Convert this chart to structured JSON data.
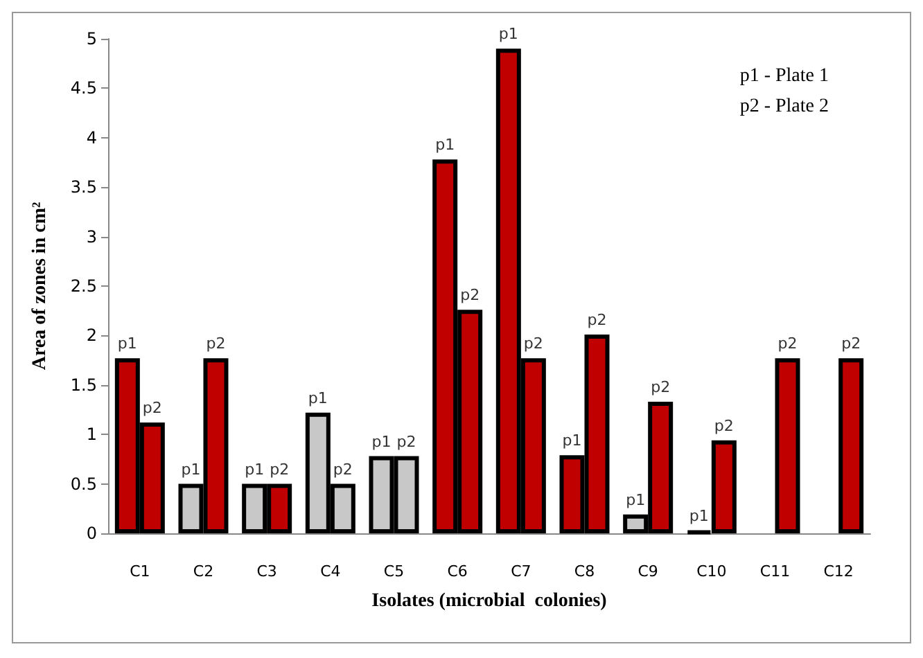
{
  "chart_data": {
    "type": "bar",
    "xlabel": "Isolates (microbial  colonies)",
    "ylabel": "Area of zones in cm²",
    "categories": [
      "C1",
      "C2",
      "C3",
      "C4",
      "C5",
      "C6",
      "C7",
      "C8",
      "C9",
      "C10",
      "C11",
      "C12"
    ],
    "series": [
      {
        "colors": [
          "#c00000",
          "#c8c8c8",
          "#c8c8c8",
          "#c8c8c8",
          "#c8c8c8",
          "#c00000",
          "#c00000",
          "#c00000",
          "#c8c8c8",
          "#000000",
          null,
          null
        ],
        "values": [
          1.77,
          0.5,
          0.5,
          1.22,
          0.78,
          3.78,
          4.9,
          0.79,
          0.19,
          0.02,
          null,
          null
        ],
        "value_labels": [
          "p1",
          "p1",
          "p1",
          "p1",
          "p1",
          "p1",
          "p1",
          "p1",
          "p1",
          "p1",
          null,
          null
        ]
      },
      {
        "colors": [
          "#c00000",
          "#c00000",
          "#c00000",
          "#c8c8c8",
          "#c8c8c8",
          "#c00000",
          "#c00000",
          "#c00000",
          "#c00000",
          "#c00000",
          "#c00000",
          "#c00000"
        ],
        "values": [
          1.12,
          1.77,
          0.5,
          0.5,
          0.78,
          2.26,
          1.77,
          2.01,
          1.33,
          0.94,
          1.77,
          1.77
        ],
        "value_labels": [
          "p2",
          "p2",
          "p2",
          "p2",
          "p2",
          "p2",
          "p2",
          "p2",
          "p2",
          "p2",
          "p2",
          "p2"
        ]
      }
    ],
    "ylim": [
      0,
      5
    ],
    "yticks": [
      0,
      0.5,
      1,
      1.5,
      2,
      2.5,
      3,
      3.5,
      4,
      4.5,
      5
    ],
    "grid": false,
    "annotations": [
      "p1 - Plate 1",
      "p2 - Plate 2"
    ]
  }
}
